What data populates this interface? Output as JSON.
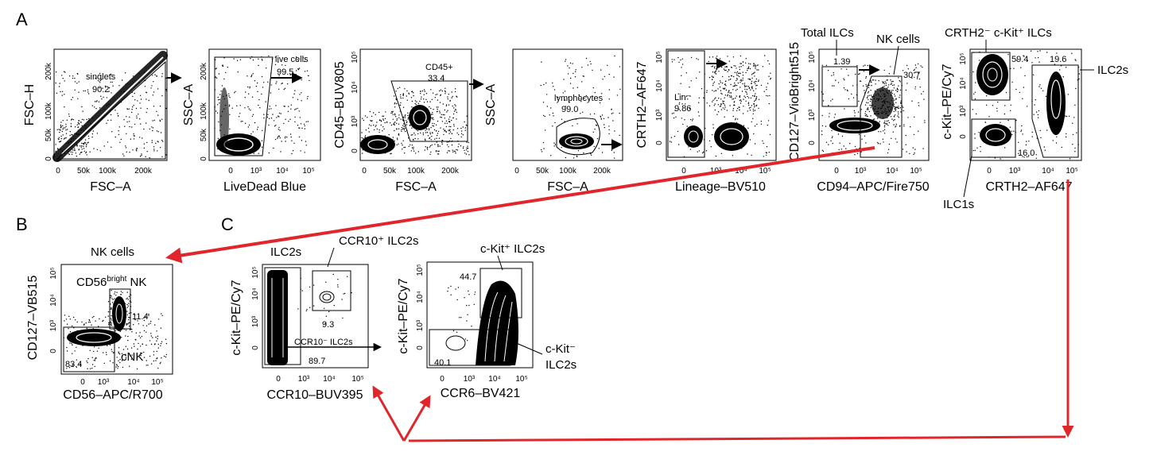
{
  "panel_letters": {
    "a": "A",
    "b": "B",
    "c": "C"
  },
  "plots": [
    {
      "id": "p1",
      "ylabel": "FSC–H",
      "xlabel": "FSC–A",
      "xticks": [
        "0",
        "50k",
        "100k",
        "200k"
      ],
      "yticks": [
        "0",
        "50k",
        "100k",
        "200k"
      ],
      "gates": [
        {
          "text": "singlets"
        },
        {
          "text": "90.2"
        }
      ]
    },
    {
      "id": "p2",
      "ylabel": "SSC–A",
      "xlabel": "LiveDead Blue",
      "xticks": [
        "0",
        "10³",
        "10⁴",
        "10⁵"
      ],
      "yticks": [
        "0",
        "50k",
        "100k",
        "200k"
      ],
      "gates": [
        {
          "text": "live cells"
        },
        {
          "text": "99.5"
        }
      ]
    },
    {
      "id": "p3",
      "ylabel": "CD45–BUV805",
      "xlabel": "FSC–A",
      "xticks": [
        "0",
        "50k",
        "100k",
        "200k"
      ],
      "yticks": [
        "0",
        "10³",
        "10⁴",
        "10⁵"
      ],
      "gates": [
        {
          "text": "CD45+"
        },
        {
          "text": "33.4"
        }
      ]
    },
    {
      "id": "p4",
      "ylabel": "SSC–A",
      "xlabel": "FSC–A",
      "xticks": [
        "0",
        "50k",
        "100k",
        "200k"
      ],
      "yticks": [
        "0",
        "50k",
        "100k",
        "200k"
      ],
      "gates": [
        {
          "text": "lymphocytes"
        },
        {
          "text": "99.0"
        }
      ]
    },
    {
      "id": "p5",
      "ylabel": "CRTH2–AF647",
      "xlabel": "Lineage–BV510",
      "xticks": [
        "0",
        "10³",
        "10⁴",
        "10⁵"
      ],
      "yticks": [
        "0",
        "10³",
        "10⁴",
        "10⁵"
      ],
      "gates": [
        {
          "text": "Lin⁻"
        },
        {
          "text": "9.86"
        }
      ]
    },
    {
      "id": "p6",
      "ylabel": "CD127–VioBright515",
      "xlabel": "CD94–APC/Fire750",
      "xticks": [
        "0",
        "10³",
        "10⁴",
        "10⁵"
      ],
      "yticks": [
        "0",
        "10³",
        "10⁴",
        "10⁵"
      ],
      "gates": [
        {
          "text": "1.39"
        },
        {
          "text": "30.7"
        }
      ]
    },
    {
      "id": "p7",
      "ylabel": "c-Kit–PE/Cy7",
      "xlabel": "CRTH2–AF647",
      "xticks": [
        "0",
        "10³",
        "10⁴",
        "10⁵"
      ],
      "yticks": [
        "0",
        "10³",
        "10⁴",
        "10⁵"
      ],
      "gates": [
        {
          "text": "59.4"
        },
        {
          "text": "19.6"
        },
        {
          "text": "16.0"
        }
      ]
    },
    {
      "id": "p8",
      "ylabel": "CD127–VB515",
      "xlabel": "CD56–APC/R700",
      "xticks": [
        "0",
        "10³",
        "10⁴",
        "10⁵"
      ],
      "yticks": [
        "0",
        "10³",
        "10⁴",
        "10⁵"
      ],
      "gates": [
        {
          "text": "11.4"
        },
        {
          "text": "83.4"
        }
      ]
    },
    {
      "id": "p9",
      "ylabel": "c-Kit–PE/Cy7",
      "xlabel": "CCR10–BUV395",
      "xticks": [
        "0",
        "10³",
        "10⁴",
        "10⁵"
      ],
      "yticks": [
        "0",
        "10³",
        "10⁴",
        "10⁵"
      ],
      "gates": [
        {
          "text": "9.3"
        },
        {
          "text": "CCR10⁻ ILC2s"
        },
        {
          "text": "89.7"
        }
      ]
    },
    {
      "id": "p10",
      "ylabel": "c-Kit–PE/Cy7",
      "xlabel": "CCR6–BV421",
      "xticks": [
        "0",
        "10³",
        "10⁴",
        "10⁵"
      ],
      "yticks": [
        "0",
        "10³",
        "10⁴",
        "10⁵"
      ],
      "gates": [
        {
          "text": "44.7"
        },
        {
          "text": "40.1"
        }
      ]
    }
  ],
  "population_labels": {
    "total_ilcs": "Total ILCs",
    "nk_cells": "NK cells",
    "crth2_ckit_ilcs": "CRTH2⁻ c-Kit⁺ ILCs",
    "ilc2s": "ILC2s",
    "ilc1s": "ILC1s",
    "nk_cells_b": "NK cells",
    "cd56_bright_nk": "CD56",
    "bright": "bright",
    "nk": " NK",
    "cnk": "cNK",
    "ilc2s_c": "ILC2s",
    "ccr10_pos_ilc2s": "CCR10⁺ ILC2s",
    "ckit_pos_ilc2s": "c-Kit⁺ ILC2s",
    "ckit_neg": "c-Kit⁻",
    "ckit_neg_ilc2s": "ILC2s"
  },
  "colors": {
    "arrow_red": "#e0262b",
    "ink": "#000000"
  }
}
